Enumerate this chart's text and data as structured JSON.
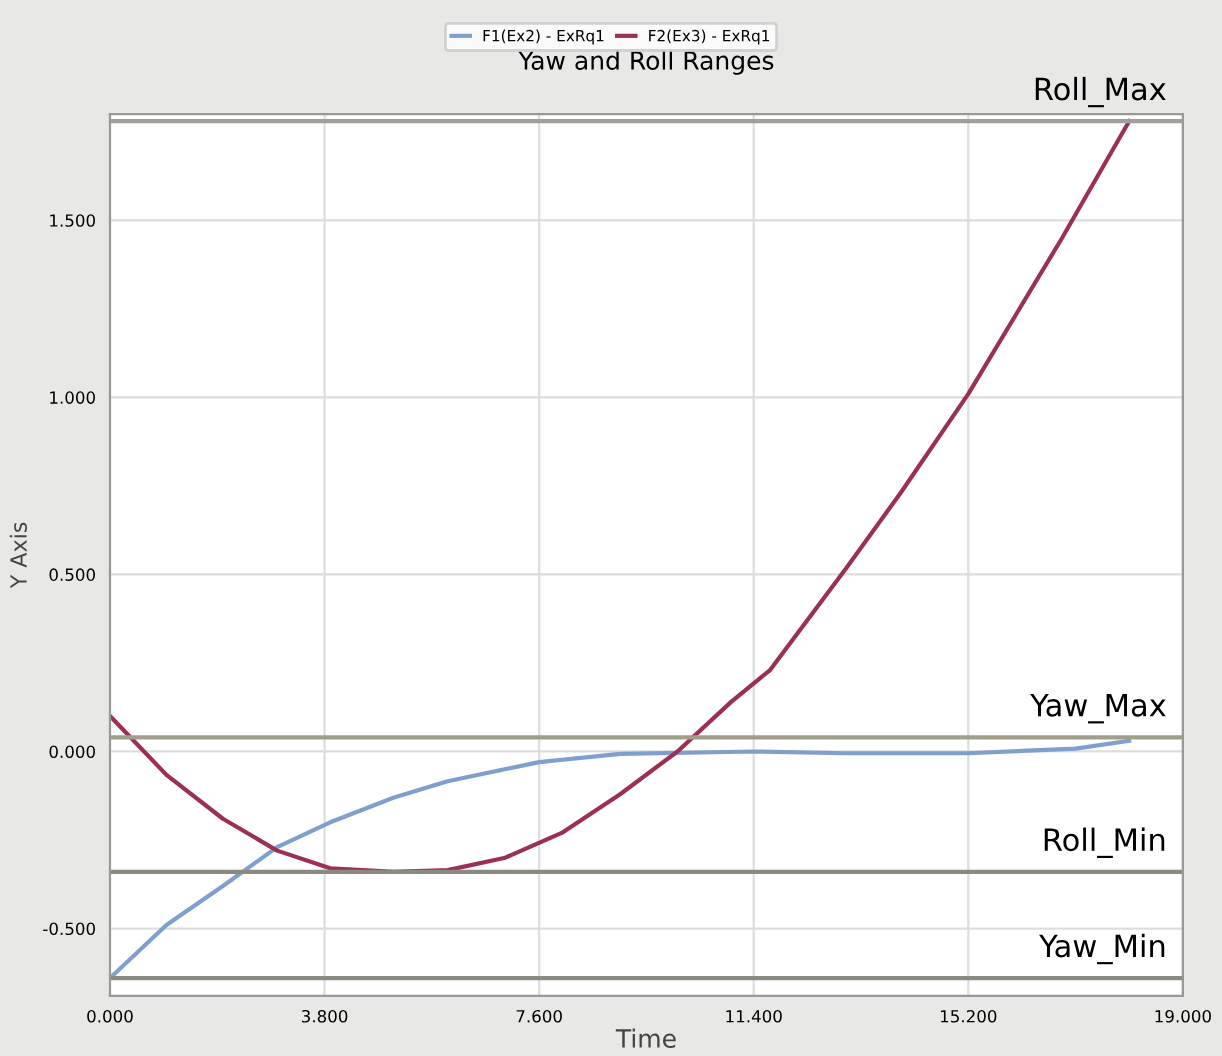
{
  "chart_data": {
    "type": "line",
    "title": "Yaw and Roll Ranges",
    "xlabel": "Time",
    "ylabel": "Y Axis",
    "xlim": [
      0,
      19
    ],
    "xticks": [
      {
        "value": 0,
        "label": "0.000"
      },
      {
        "value": 3.8,
        "label": "3.800"
      },
      {
        "value": 7.6,
        "label": "7.600"
      },
      {
        "value": 11.4,
        "label": "11.400"
      },
      {
        "value": 15.2,
        "label": "15.200"
      },
      {
        "value": 19,
        "label": "19.000"
      }
    ],
    "ylim": [
      -0.69,
      1.8
    ],
    "yticks": [
      {
        "value": -0.5,
        "label": "-0.500"
      },
      {
        "value": 0,
        "label": "0.000"
      },
      {
        "value": 0.5,
        "label": "0.500"
      },
      {
        "value": 1,
        "label": "1.000"
      },
      {
        "value": 1.5,
        "label": "1.500"
      }
    ],
    "grid": true,
    "legend": "top",
    "marker": "none",
    "line_style": "solid",
    "series": [
      {
        "name": "F1(Ex2) - ExRq1",
        "color": "#7f9fcf",
        "x": [
          0,
          1,
          2,
          2.96,
          3.9,
          5.03,
          5.98,
          7.6,
          9.04,
          11.4,
          13,
          15.2,
          17.1,
          18.05
        ],
        "values": [
          -0.64,
          -0.49,
          -0.38,
          -0.27,
          -0.2,
          -0.13,
          -0.084,
          -0.03,
          -0.007,
          0,
          -0.005,
          -0.005,
          0.008,
          0.03
        ]
      },
      {
        "name": "F2(Ex3) - ExRq1",
        "color": "#9b3050",
        "x": [
          0,
          1,
          2,
          2.96,
          3.9,
          5.03,
          5.98,
          7,
          8,
          9.04,
          10.05,
          11,
          11.69,
          13.05,
          14,
          15.2,
          16.86,
          18.05
        ],
        "values": [
          0.1,
          -0.066,
          -0.19,
          -0.28,
          -0.33,
          -0.34,
          -0.335,
          -0.3,
          -0.23,
          -0.12,
          0,
          0.14,
          0.23,
          0.52,
          0.73,
          1.01,
          1.45,
          1.78
        ]
      }
    ],
    "ref_lines": [
      {
        "axis": "y",
        "value": 1.78,
        "label": "Roll_Max",
        "color": "#a0a098"
      },
      {
        "axis": "y",
        "value": 0.04,
        "label": "Yaw_Max",
        "color": "#a0a08a"
      },
      {
        "axis": "y",
        "value": -0.34,
        "label": "Roll_Min",
        "color": "#8a8a80"
      },
      {
        "axis": "y",
        "value": -0.64,
        "label": "Yaw_Min",
        "color": "#8a8a80"
      }
    ]
  }
}
